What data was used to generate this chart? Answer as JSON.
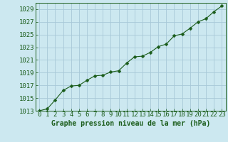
{
  "x": [
    0,
    1,
    2,
    3,
    4,
    5,
    6,
    7,
    8,
    9,
    10,
    11,
    12,
    13,
    14,
    15,
    16,
    17,
    18,
    19,
    20,
    21,
    22,
    23
  ],
  "y": [
    1013.0,
    1013.3,
    1014.7,
    1016.2,
    1016.9,
    1017.0,
    1017.8,
    1018.5,
    1018.6,
    1019.1,
    1019.3,
    1020.5,
    1021.5,
    1021.6,
    1022.2,
    1023.1,
    1023.5,
    1024.8,
    1025.1,
    1026.0,
    1027.0,
    1027.5,
    1028.6,
    1029.5
  ],
  "line_color": "#1a5c1a",
  "marker": "D",
  "marker_size": 2.5,
  "bg_color": "#cce8f0",
  "grid_color": "#a8c8d8",
  "title": "Graphe pression niveau de la mer (hPa)",
  "ylim_min": 1013,
  "ylim_max": 1030,
  "ytick_start": 1013,
  "ytick_step": 2,
  "xlim_min": -0.5,
  "xlim_max": 23.5,
  "xlabel_fontsize": 6.5,
  "ylabel_fontsize": 6.5,
  "title_fontsize": 7,
  "tick_color": "#1a5c1a"
}
